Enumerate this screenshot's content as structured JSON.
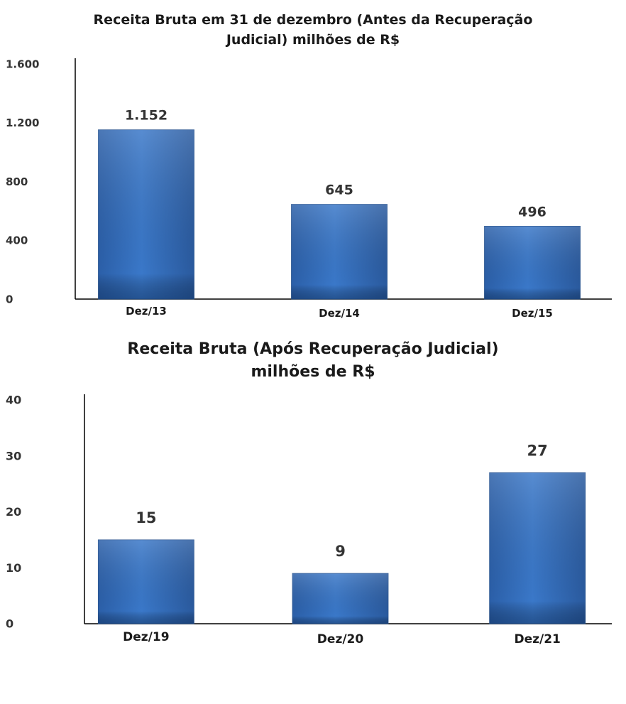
{
  "chart_data": [
    {
      "type": "bar",
      "title_line1": "Receita Bruta em 31 de dezembro (Antes da Recuperação",
      "title_line2": "Judicial) milhões de R$",
      "categories": [
        "Dez/13",
        "Dez/14",
        "Dez/15"
      ],
      "values": [
        1152,
        645,
        496
      ],
      "data_labels": [
        "1.152",
        "645",
        "496"
      ],
      "ytick_labels": [
        "0",
        "400",
        "800",
        "1.200",
        "1.600"
      ],
      "yticks": [
        0,
        400,
        800,
        1200,
        1600
      ],
      "ylim": [
        0,
        1600
      ],
      "grid": false,
      "bar_color": "#3a78c9"
    },
    {
      "type": "bar",
      "title_line1": "Receita Bruta (Após Recuperação Judicial)",
      "title_line2": "milhões de R$",
      "categories": [
        "Dez/19",
        "Dez/20",
        "Dez/21"
      ],
      "values": [
        15,
        9,
        27
      ],
      "data_labels": [
        "15",
        "9",
        "27"
      ],
      "ytick_labels": [
        "0",
        "10",
        "20",
        "30",
        "40"
      ],
      "yticks": [
        0,
        10,
        20,
        30,
        40
      ],
      "ylim": [
        0,
        40
      ],
      "grid": false,
      "bar_color": "#3a78c9"
    }
  ]
}
